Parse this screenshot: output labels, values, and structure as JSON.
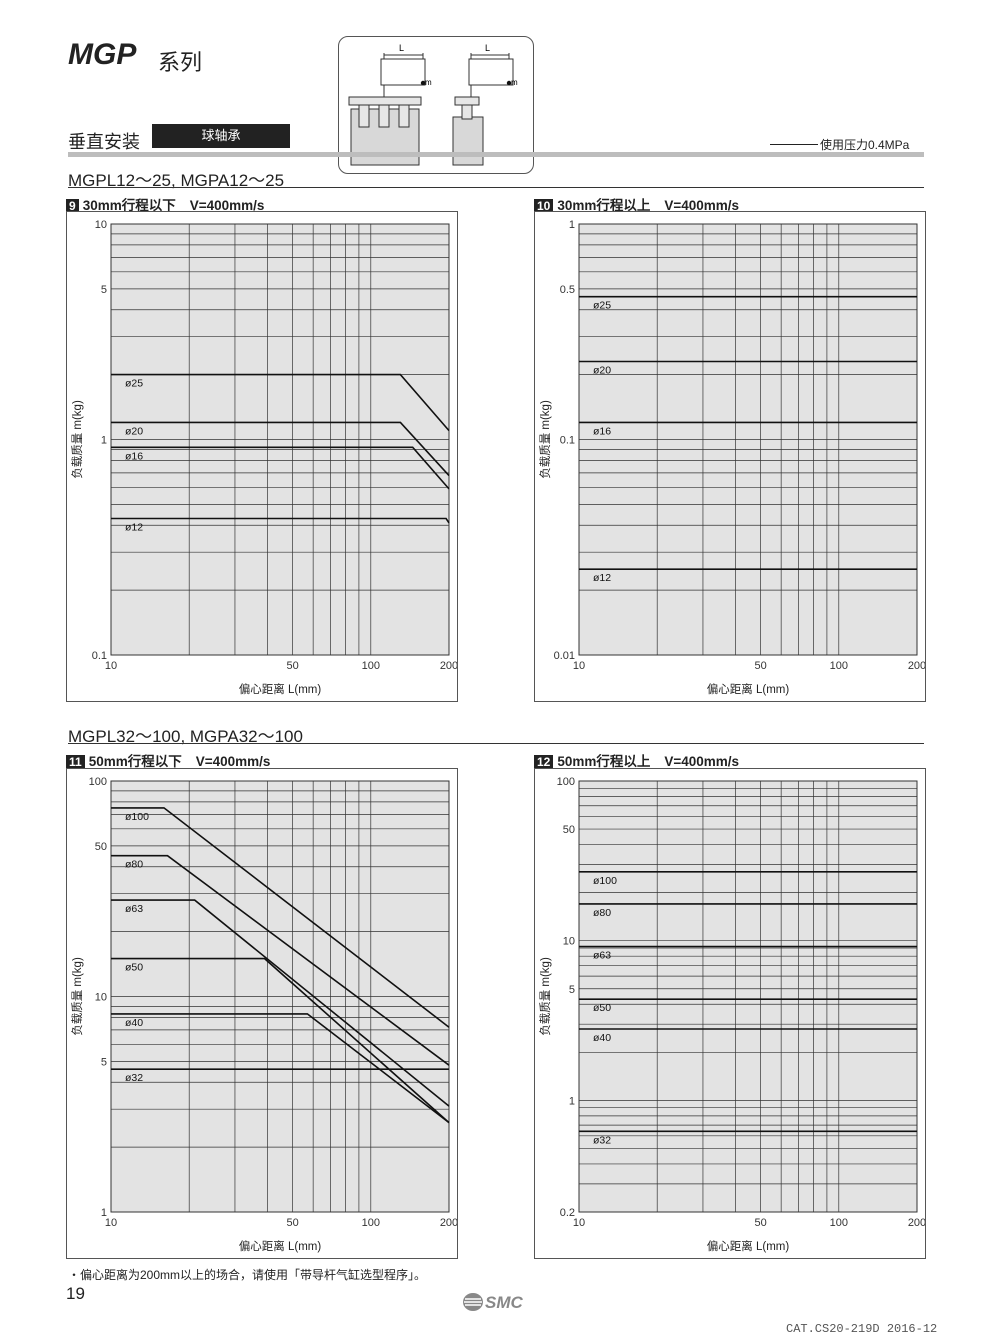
{
  "header": {
    "series_title": "MGP",
    "series_suffix": "系列",
    "mount_label": "垂直安装",
    "bearing_tag": "球轴承",
    "pressure_note": "使用压力0.4MPa",
    "icon_labels": {
      "L": "L",
      "m": "m"
    }
  },
  "sections": [
    {
      "model_title": "MGPL12～25, MGPA12～25"
    },
    {
      "model_title": "MGPL32～100, MGPA32～100"
    }
  ],
  "charts_meta": [
    {
      "number": "9",
      "title": "30mm行程以下",
      "speed": "V=400mm/s"
    },
    {
      "number": "10",
      "title": "30mm行程以上",
      "speed": "V=400mm/s"
    },
    {
      "number": "11",
      "title": "50mm行程以下",
      "speed": "V=400mm/s"
    },
    {
      "number": "12",
      "title": "50mm行程以上",
      "speed": "V=400mm/s"
    }
  ],
  "chart_data": [
    {
      "type": "line",
      "xlabel": "偏心距离 L(mm)",
      "ylabel": "负载质量 m(kg)",
      "xscale": "log",
      "yscale": "log",
      "xlim": [
        10,
        200
      ],
      "ylim": [
        0.1,
        10
      ],
      "x_ticks": [
        10,
        50,
        100,
        200
      ],
      "y_ticks": [
        0.1,
        1,
        5,
        10
      ],
      "grid": true,
      "series": [
        {
          "name": "ø25",
          "x": [
            10,
            130,
            200
          ],
          "y": [
            2,
            2,
            1.1
          ]
        },
        {
          "name": "ø20",
          "x": [
            10,
            130,
            200
          ],
          "y": [
            1.2,
            1.2,
            0.68
          ]
        },
        {
          "name": "ø16",
          "x": [
            10,
            145,
            200
          ],
          "y": [
            0.92,
            0.92,
            0.59
          ]
        },
        {
          "name": "ø12",
          "x": [
            10,
            195,
            200
          ],
          "y": [
            0.43,
            0.43,
            0.41
          ]
        }
      ]
    },
    {
      "type": "line",
      "xlabel": "偏心距离 L(mm)",
      "ylabel": "负载质量 m(kg)",
      "xscale": "log",
      "yscale": "log",
      "xlim": [
        10,
        200
      ],
      "ylim": [
        0.01,
        1
      ],
      "x_ticks": [
        10,
        50,
        100,
        200
      ],
      "y_ticks": [
        0.01,
        0.1,
        0.5,
        1
      ],
      "grid": true,
      "series": [
        {
          "name": "ø25",
          "x": [
            10,
            200
          ],
          "y": [
            0.46,
            0.46
          ]
        },
        {
          "name": "ø20",
          "x": [
            10,
            200
          ],
          "y": [
            0.23,
            0.23
          ]
        },
        {
          "name": "ø16",
          "x": [
            10,
            200
          ],
          "y": [
            0.12,
            0.12
          ]
        },
        {
          "name": "ø12",
          "x": [
            10,
            200
          ],
          "y": [
            0.025,
            0.025
          ]
        }
      ]
    },
    {
      "type": "line",
      "xlabel": "偏心距离 L(mm)",
      "ylabel": "负载质量 m(kg)",
      "xscale": "log",
      "yscale": "log",
      "xlim": [
        10,
        200
      ],
      "ylim": [
        1,
        100
      ],
      "x_ticks": [
        10,
        50,
        100,
        200
      ],
      "y_ticks": [
        1,
        5,
        10,
        50,
        100
      ],
      "grid": true,
      "series": [
        {
          "name": "ø100",
          "x": [
            10,
            16,
            200
          ],
          "y": [
            75,
            75,
            7.2
          ]
        },
        {
          "name": "ø80",
          "x": [
            10,
            16.5,
            200
          ],
          "y": [
            45,
            45,
            4.8
          ]
        },
        {
          "name": "ø63",
          "x": [
            10,
            21,
            200
          ],
          "y": [
            28,
            28,
            3.1
          ]
        },
        {
          "name": "ø50",
          "x": [
            10,
            39,
            200
          ],
          "y": [
            15,
            15,
            2.6
          ]
        },
        {
          "name": "ø40",
          "x": [
            10,
            57,
            200
          ],
          "y": [
            8.3,
            8.3,
            2.6
          ]
        },
        {
          "name": "ø32",
          "x": [
            10,
            200
          ],
          "y": [
            4.6,
            4.6
          ]
        }
      ]
    },
    {
      "type": "line",
      "xlabel": "偏心距离 L(mm)",
      "ylabel": "负载质量 m(kg)",
      "xscale": "log",
      "yscale": "log",
      "xlim": [
        10,
        200
      ],
      "ylim": [
        0.2,
        100
      ],
      "x_ticks": [
        10,
        50,
        100,
        200
      ],
      "y_ticks": [
        0.2,
        1,
        5,
        10,
        50,
        100
      ],
      "grid": true,
      "series": [
        {
          "name": "ø100",
          "x": [
            10,
            200
          ],
          "y": [
            27,
            27
          ]
        },
        {
          "name": "ø80",
          "x": [
            10,
            200
          ],
          "y": [
            17,
            17
          ]
        },
        {
          "name": "ø63",
          "x": [
            10,
            200
          ],
          "y": [
            9.2,
            9.2
          ]
        },
        {
          "name": "ø50",
          "x": [
            10,
            200
          ],
          "y": [
            4.3,
            4.3
          ]
        },
        {
          "name": "ø40",
          "x": [
            10,
            200
          ],
          "y": [
            2.8,
            2.8
          ]
        },
        {
          "name": "ø32",
          "x": [
            10,
            200
          ],
          "y": [
            0.64,
            0.64
          ]
        }
      ]
    }
  ],
  "footer": {
    "note": "・偏心距离为200mm以上的场合，请使用「带导杆气缸选型程序」。",
    "page_number": "19",
    "logo_text": "SMC",
    "catalog_code": "CAT.CS20-219D 2016-12"
  }
}
